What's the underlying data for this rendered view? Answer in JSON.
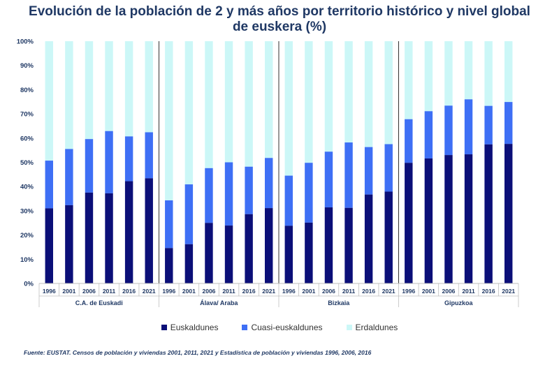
{
  "title": "Evolución de la población de 2 y más años por territorio histórico y nivel global de euskera (%)",
  "source": "Fuente: EUSTAT. Censos de población y viviendas 2001, 2011, 2021 y Estadística de población y viviendas 1996, 2006, 2016",
  "colors": {
    "euskaldunes": "#0b0f78",
    "cuasi": "#3e6ff5",
    "erdaldunes": "#ccf7f7",
    "axis_text": "#1f3864",
    "title": "#1f3864"
  },
  "chart_data": {
    "type": "bar",
    "stacked": true,
    "title": "Evolución de la población de 2 y más años por territorio histórico y nivel global de euskera (%)",
    "ylim": [
      0,
      100
    ],
    "y_ticks": [
      "0%",
      "10%",
      "20%",
      "30%",
      "40%",
      "50%",
      "60%",
      "70%",
      "80%",
      "90%",
      "100%"
    ],
    "years": [
      "1996",
      "2001",
      "2006",
      "2011",
      "2016",
      "2021"
    ],
    "legend": [
      "Euskaldunes",
      "Cuasi-euskaldunes",
      "Erdaldunes"
    ],
    "groups": [
      {
        "name": "C.A. de Euskadi",
        "euskaldunes": [
          31.0,
          32.3,
          37.5,
          37.2,
          42.2,
          43.4
        ],
        "cuasi": [
          19.7,
          23.2,
          22.1,
          25.7,
          18.5,
          19.0
        ],
        "erdaldunes": [
          49.3,
          44.5,
          40.4,
          37.1,
          39.3,
          37.6
        ]
      },
      {
        "name": "Álava/ Araba",
        "euskaldunes": [
          14.6,
          16.2,
          25.0,
          23.9,
          28.6,
          31.1
        ],
        "cuasi": [
          19.7,
          24.7,
          22.6,
          26.1,
          19.6,
          20.7
        ],
        "erdaldunes": [
          65.7,
          59.1,
          52.4,
          50.0,
          51.8,
          48.2
        ]
      },
      {
        "name": "Bizkaia",
        "euskaldunes": [
          23.8,
          25.1,
          31.4,
          31.2,
          36.7,
          37.9
        ],
        "cuasi": [
          20.7,
          24.7,
          23.0,
          27.0,
          19.6,
          19.6
        ],
        "erdaldunes": [
          55.5,
          50.2,
          45.6,
          41.8,
          43.7,
          42.5
        ]
      },
      {
        "name": "Gipuzkoa",
        "euskaldunes": [
          49.8,
          51.6,
          53.0,
          53.3,
          57.4,
          57.6
        ],
        "cuasi": [
          18.0,
          19.5,
          20.4,
          22.7,
          15.9,
          17.3
        ],
        "erdaldunes": [
          32.2,
          28.9,
          26.6,
          24.0,
          26.7,
          25.1
        ]
      }
    ]
  }
}
